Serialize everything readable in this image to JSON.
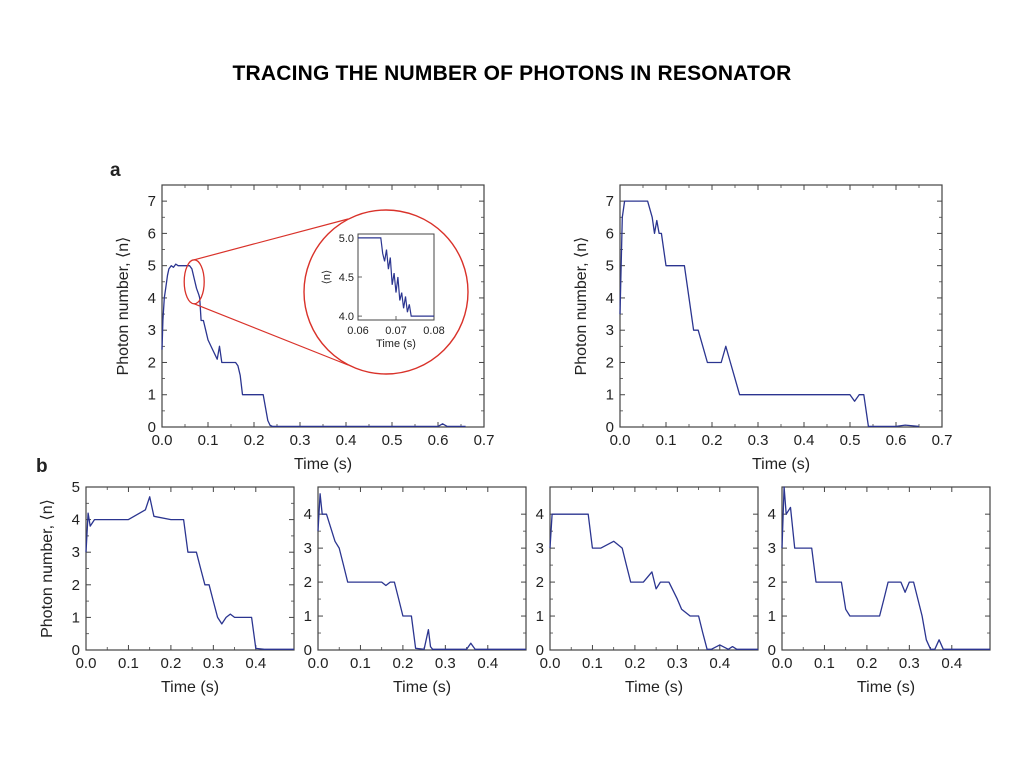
{
  "slide": {
    "title": "TRACING THE NUMBER OF PHOTONS IN RESONATOR"
  },
  "colors": {
    "trace": "#2b3590",
    "zoom": "#d9322a",
    "frame": "#444444"
  },
  "panel_labels": {
    "a": "a",
    "b": "b"
  },
  "chart_data": [
    {
      "id": "a1",
      "type": "line",
      "panel": "a",
      "xlabel": "Time (s)",
      "ylabel": "Photon number, ⟨n⟩",
      "xlim": [
        0,
        0.7
      ],
      "ylim": [
        0,
        7.5
      ],
      "xticks": [
        0,
        0.1,
        0.2,
        0.3,
        0.4,
        0.5,
        0.6,
        0.7
      ],
      "yticks": [
        0,
        1,
        2,
        3,
        4,
        5,
        6,
        7
      ],
      "series": [
        {
          "x": [
            0,
            0.002,
            0.005,
            0.008,
            0.012,
            0.015,
            0.02,
            0.025,
            0.03,
            0.035,
            0.04,
            0.05,
            0.06,
            0.065,
            0.07,
            0.075,
            0.08,
            0.082,
            0.085,
            0.09,
            0.095,
            0.1,
            0.11,
            0.12,
            0.125,
            0.13,
            0.14,
            0.15,
            0.16,
            0.165,
            0.17,
            0.175,
            0.18,
            0.19,
            0.2,
            0.21,
            0.22,
            0.225,
            0.23,
            0.235,
            0.24,
            0.3,
            0.4,
            0.45,
            0.5,
            0.55,
            0.6,
            0.61,
            0.62,
            0.66
          ],
          "y": [
            2.4,
            3.3,
            4.0,
            4.3,
            4.7,
            4.9,
            5.0,
            4.95,
            5.05,
            5.0,
            5.0,
            5.0,
            5.0,
            4.9,
            4.6,
            4.3,
            4.1,
            4.0,
            3.3,
            3.3,
            3.0,
            2.7,
            2.4,
            2.1,
            2.5,
            2.0,
            2.0,
            2.0,
            2.0,
            1.9,
            1.6,
            1.0,
            1.0,
            1.0,
            1.0,
            1.0,
            1.0,
            0.6,
            0.2,
            0.05,
            0.02,
            0.02,
            0.02,
            0.02,
            0.02,
            0.02,
            0.02,
            0.1,
            0.02,
            0.02
          ]
        }
      ],
      "inset": {
        "xlabel": "Time (s)",
        "ylabel": "⟨n⟩",
        "xlim": [
          0.06,
          0.08
        ],
        "ylim": [
          3.95,
          5.05
        ],
        "xticks": [
          0.06,
          0.07,
          0.08
        ],
        "yticks": [
          4.0,
          4.5,
          5.0
        ],
        "series": [
          {
            "x": [
              0.06,
              0.062,
              0.064,
              0.066,
              0.0665,
              0.067,
              0.0675,
              0.068,
              0.0685,
              0.069,
              0.0695,
              0.07,
              0.0705,
              0.071,
              0.0715,
              0.072,
              0.0725,
              0.073,
              0.0735,
              0.074,
              0.075,
              0.076,
              0.08
            ],
            "y": [
              5.0,
              5.0,
              5.0,
              5.0,
              4.8,
              4.7,
              4.85,
              4.6,
              4.75,
              4.4,
              4.55,
              4.3,
              4.5,
              4.2,
              4.3,
              4.1,
              4.25,
              4.05,
              4.15,
              4.0,
              4.0,
              4.0,
              4.0
            ]
          }
        ]
      }
    },
    {
      "id": "a2",
      "type": "line",
      "panel": "a",
      "xlabel": "Time (s)",
      "ylabel": "Photon number, ⟨n⟩",
      "xlim": [
        0,
        0.7
      ],
      "ylim": [
        0,
        7.5
      ],
      "xticks": [
        0,
        0.1,
        0.2,
        0.3,
        0.4,
        0.5,
        0.6,
        0.7
      ],
      "yticks": [
        0,
        1,
        2,
        3,
        4,
        5,
        6,
        7
      ],
      "series": [
        {
          "x": [
            0,
            0.005,
            0.01,
            0.015,
            0.02,
            0.04,
            0.06,
            0.07,
            0.075,
            0.08,
            0.085,
            0.09,
            0.1,
            0.11,
            0.12,
            0.13,
            0.14,
            0.15,
            0.16,
            0.17,
            0.18,
            0.19,
            0.2,
            0.21,
            0.22,
            0.23,
            0.24,
            0.25,
            0.26,
            0.3,
            0.35,
            0.4,
            0.45,
            0.5,
            0.51,
            0.52,
            0.53,
            0.54,
            0.545,
            0.6,
            0.62,
            0.65
          ],
          "y": [
            3.5,
            6.5,
            7.0,
            7.0,
            7.0,
            7.0,
            7.0,
            6.5,
            6.0,
            6.4,
            6.0,
            6.0,
            5.0,
            5.0,
            5.0,
            5.0,
            5.0,
            4.0,
            3.0,
            3.0,
            2.5,
            2.0,
            2.0,
            2.0,
            2.0,
            2.5,
            2.0,
            1.5,
            1.0,
            1.0,
            1.0,
            1.0,
            1.0,
            1.0,
            0.8,
            1.0,
            1.0,
            0.02,
            0.02,
            0.02,
            0.06,
            0.02
          ]
        }
      ]
    },
    {
      "id": "b1",
      "type": "line",
      "panel": "b",
      "xlabel": "Time (s)",
      "ylabel": "Photon number, ⟨n⟩",
      "xlim": [
        0,
        0.49
      ],
      "ylim": [
        0,
        5
      ],
      "xticks": [
        0,
        0.1,
        0.2,
        0.3,
        0.4
      ],
      "yticks": [
        0,
        1,
        2,
        3,
        4,
        5
      ],
      "series": [
        {
          "x": [
            0,
            0.005,
            0.01,
            0.02,
            0.05,
            0.1,
            0.14,
            0.15,
            0.16,
            0.2,
            0.23,
            0.24,
            0.25,
            0.26,
            0.27,
            0.28,
            0.29,
            0.3,
            0.31,
            0.32,
            0.33,
            0.34,
            0.35,
            0.36,
            0.38,
            0.39,
            0.4,
            0.42,
            0.45,
            0.49
          ],
          "y": [
            3.0,
            4.2,
            3.8,
            4.0,
            4.0,
            4.0,
            4.3,
            4.7,
            4.1,
            4.0,
            4.0,
            3.0,
            3.0,
            3.0,
            2.5,
            2.0,
            2.0,
            1.5,
            1.0,
            0.8,
            1.0,
            1.1,
            1.0,
            1.0,
            1.0,
            1.0,
            0.05,
            0.02,
            0.02,
            0.02
          ]
        }
      ]
    },
    {
      "id": "b2",
      "type": "line",
      "panel": "b",
      "xticks": [
        0,
        0.1,
        0.2,
        0.3,
        0.4
      ],
      "yticks": [
        0,
        1,
        2,
        3,
        4
      ],
      "xlabel": "Time (s)",
      "xlim": [
        0,
        0.49
      ],
      "ylim": [
        0,
        4.8
      ],
      "series": [
        {
          "x": [
            0,
            0.005,
            0.01,
            0.02,
            0.04,
            0.05,
            0.06,
            0.07,
            0.08,
            0.1,
            0.15,
            0.16,
            0.17,
            0.18,
            0.19,
            0.2,
            0.21,
            0.22,
            0.23,
            0.25,
            0.26,
            0.265,
            0.27,
            0.3,
            0.35,
            0.36,
            0.37,
            0.49
          ],
          "y": [
            3.5,
            4.6,
            4.0,
            4.0,
            3.2,
            3.0,
            2.5,
            2.0,
            2.0,
            2.0,
            2.0,
            1.9,
            2.0,
            2.0,
            1.5,
            1.0,
            1.0,
            1.0,
            0.05,
            0.02,
            0.6,
            0.1,
            0.02,
            0.02,
            0.02,
            0.2,
            0.02,
            0.02
          ]
        }
      ]
    },
    {
      "id": "b3",
      "type": "line",
      "panel": "b",
      "xticks": [
        0,
        0.1,
        0.2,
        0.3,
        0.4
      ],
      "yticks": [
        0,
        1,
        2,
        3,
        4
      ],
      "xlabel": "Time (s)",
      "xlim": [
        0,
        0.49
      ],
      "ylim": [
        0,
        4.8
      ],
      "series": [
        {
          "x": [
            0,
            0.005,
            0.01,
            0.05,
            0.09,
            0.1,
            0.12,
            0.15,
            0.17,
            0.18,
            0.19,
            0.2,
            0.22,
            0.24,
            0.25,
            0.26,
            0.28,
            0.3,
            0.31,
            0.33,
            0.34,
            0.35,
            0.36,
            0.37,
            0.38,
            0.4,
            0.42,
            0.43,
            0.44,
            0.49
          ],
          "y": [
            3.0,
            4.0,
            4.0,
            4.0,
            4.0,
            3.0,
            3.0,
            3.2,
            3.0,
            2.5,
            2.0,
            2.0,
            2.0,
            2.3,
            1.8,
            2.0,
            2.0,
            1.5,
            1.2,
            1.0,
            1.0,
            1.0,
            0.5,
            0.02,
            0.02,
            0.15,
            0.02,
            0.1,
            0.02,
            0.02
          ]
        }
      ]
    },
    {
      "id": "b4",
      "type": "line",
      "panel": "b",
      "xticks": [
        0,
        0.1,
        0.2,
        0.3,
        0.4
      ],
      "yticks": [
        0,
        1,
        2,
        3,
        4
      ],
      "xlabel": "Time (s)",
      "xlim": [
        0,
        0.49
      ],
      "ylim": [
        0,
        4.8
      ],
      "series": [
        {
          "x": [
            0,
            0.005,
            0.01,
            0.02,
            0.03,
            0.05,
            0.07,
            0.08,
            0.1,
            0.14,
            0.15,
            0.16,
            0.2,
            0.23,
            0.24,
            0.25,
            0.28,
            0.29,
            0.3,
            0.31,
            0.33,
            0.34,
            0.35,
            0.36,
            0.37,
            0.38,
            0.4,
            0.49
          ],
          "y": [
            3.0,
            4.8,
            4.0,
            4.2,
            3.0,
            3.0,
            3.0,
            2.0,
            2.0,
            2.0,
            1.2,
            1.0,
            1.0,
            1.0,
            1.5,
            2.0,
            2.0,
            1.7,
            2.0,
            2.0,
            1.0,
            0.3,
            0.02,
            0.02,
            0.3,
            0.02,
            0.02,
            0.02
          ]
        }
      ]
    }
  ]
}
